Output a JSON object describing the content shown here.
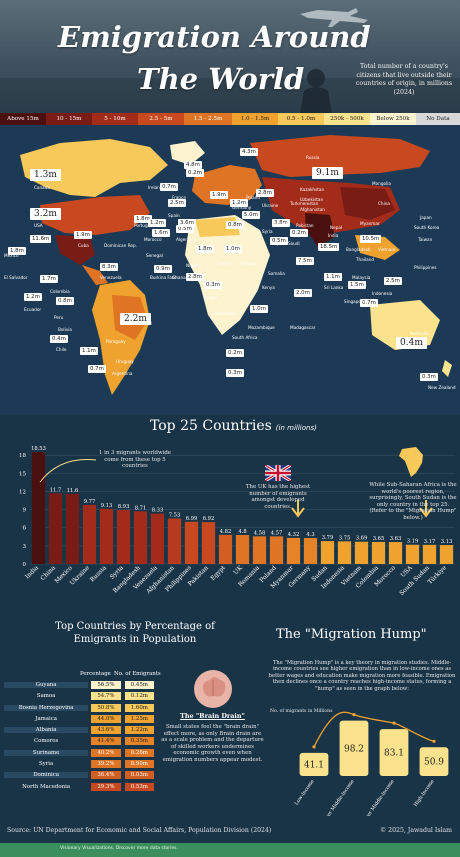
{
  "header": {
    "title_line1": "Emigration Around",
    "title_line2": "The World",
    "subtitle": "Total number of a country's citizens that live outside their countries of origin, in millions (2024)"
  },
  "legend": [
    {
      "label": "Above 15m",
      "color": "#4a0f0f",
      "text": "#fff"
    },
    {
      "label": "10 - 15m",
      "color": "#7a1c16",
      "text": "#fff"
    },
    {
      "label": "5 - 10m",
      "color": "#a32b1a",
      "text": "#fff"
    },
    {
      "label": "2.5 - 5m",
      "color": "#c8491f",
      "text": "#fff"
    },
    {
      "label": "1.5 - 2.5m",
      "color": "#de7424",
      "text": "#fff"
    },
    {
      "label": "1.0 - 1.5m",
      "color": "#f0a22e",
      "text": "#222"
    },
    {
      "label": "0.5 - 1.0m",
      "color": "#f7c85a",
      "text": "#222"
    },
    {
      "label": "250k - 500k",
      "color": "#fbe38e",
      "text": "#222"
    },
    {
      "label": "Below 250k",
      "color": "#fdf3cf",
      "text": "#222"
    },
    {
      "label": "No Data",
      "color": "#d8d8d8",
      "text": "#222"
    }
  ],
  "map_labels": [
    {
      "text": "1.3m",
      "big": true
    },
    {
      "text": "3.2m",
      "big": true
    },
    {
      "text": "9.1m",
      "big": true
    },
    {
      "text": "2.2m",
      "big": true
    },
    {
      "text": "0.4m",
      "big": true
    },
    {
      "text": "4.3m"
    },
    {
      "text": "4.8m"
    },
    {
      "text": "0.7m"
    },
    {
      "text": "2.8m"
    },
    {
      "text": "5.0m"
    },
    {
      "text": "0.2m"
    },
    {
      "text": "2.5m"
    },
    {
      "text": "1.8m"
    },
    {
      "text": "1.6m"
    },
    {
      "text": "0.5m"
    },
    {
      "text": "18.5m"
    },
    {
      "text": "10.5m"
    },
    {
      "text": "1.9m"
    },
    {
      "text": "1.2m"
    },
    {
      "text": "0.8m"
    },
    {
      "text": "11.6m"
    },
    {
      "text": "1.8m"
    },
    {
      "text": "1.9m"
    },
    {
      "text": "8.3m"
    },
    {
      "text": "1.7m"
    },
    {
      "text": "1.2m"
    },
    {
      "text": "0.8m"
    },
    {
      "text": "0.4m"
    },
    {
      "text": "1.1m"
    },
    {
      "text": "0.7m"
    },
    {
      "text": "1.2m"
    },
    {
      "text": "3.6m"
    },
    {
      "text": "0.9m"
    },
    {
      "text": "1.8m"
    },
    {
      "text": "2.8m"
    },
    {
      "text": "1.0m"
    },
    {
      "text": "3.8m"
    },
    {
      "text": "0.5m"
    },
    {
      "text": "0.2m"
    },
    {
      "text": "7.5m"
    },
    {
      "text": "2.0m"
    },
    {
      "text": "0.3m"
    },
    {
      "text": "1.0m"
    },
    {
      "text": "0.2m"
    },
    {
      "text": "0.3m"
    },
    {
      "text": "1.1m"
    },
    {
      "text": "1.5m"
    },
    {
      "text": "2.5m"
    },
    {
      "text": "0.7m"
    },
    {
      "text": "0.3m"
    }
  ],
  "map_places": [
    "Canada",
    "USA",
    "Mexico",
    "El Salvador",
    "Cuba",
    "Dominican Rep.",
    "Venezuela",
    "Colombia",
    "Ecuador",
    "Peru",
    "Bolivia",
    "Chile",
    "Brazil",
    "Paraguay",
    "Uruguay",
    "Argentina",
    "Portugal",
    "Spain",
    "France",
    "Ireland",
    "Poland",
    "Germany",
    "Russia",
    "Ukraine",
    "Morocco",
    "Algeria",
    "Senegal",
    "Burkina Faso",
    "Ghana",
    "Nigeria",
    "Angola",
    "Zimbabwe",
    "South Africa",
    "Mozambique",
    "Sudan",
    "Ethiopia",
    "Somalia",
    "Kenya",
    "Syria",
    "Iraq",
    "Saudi",
    "Afghanistan",
    "Pakistan",
    "India",
    "Bangladesh",
    "Nepal",
    "Sri Lanka",
    "Myanmar",
    "Thailand",
    "Vietnam",
    "Malaysia",
    "Indonesia",
    "Philippines",
    "China",
    "Mongolia",
    "Japan",
    "South Korea",
    "Taiwan",
    "Singapore",
    "Australia",
    "New Zealand",
    "Kazakhstan",
    "Uzbekistan",
    "Turkmenistan",
    "Madagascar",
    "Romania"
  ],
  "top25": {
    "title": "Top 25 Countries",
    "unit": "(in millions)",
    "note_top5": "1 in 3 migrants worldwide come from these top 5 countries",
    "note_uk": "The UK has the highest number of emigrants amongst developed countries.",
    "note_sudan": "While Sub-Saharan Africa is the world's poorest region, surprisingly, South Sudan is the only country in the top 25. (Refer to the \"Migration Hump\" below.)"
  },
  "chart_data": [
    {
      "type": "bar",
      "title": "Top 25 Countries",
      "ylabel": "",
      "ylim": [
        0,
        18.53
      ],
      "yticks": [
        0,
        3,
        6,
        9,
        12,
        15,
        18
      ],
      "categories": [
        "India",
        "China",
        "Mexico",
        "Ukraine",
        "Russia",
        "Syria",
        "Bangladesh",
        "Venezuela",
        "Afghanistan",
        "Philippines",
        "Pakistan",
        "Egypt",
        "UK",
        "Romania",
        "Poland",
        "Myanmar",
        "Germany",
        "Sudan",
        "Indonesia",
        "Vietnam",
        "Colombia",
        "Morocco",
        "USA",
        "South Sudan",
        "Türkiye"
      ],
      "values": [
        18.53,
        11.7,
        11.6,
        9.77,
        9.13,
        8.93,
        8.71,
        8.33,
        7.53,
        6.99,
        6.92,
        4.82,
        4.8,
        4.58,
        4.57,
        4.32,
        4.3,
        3.79,
        3.75,
        3.69,
        3.65,
        3.63,
        3.19,
        3.17,
        3.13
      ],
      "value_labels": [
        "18.53",
        "11.7",
        "11.6",
        "9.77",
        "9.13",
        "8.93",
        "8.71",
        "8.33",
        "7.53",
        "6.99",
        "6.92",
        "4.82",
        "4.8",
        "4.58",
        "4.57",
        "4.32",
        "4.3",
        "3.79",
        "3.75",
        "3.69",
        "3.65",
        "3.63",
        "3.19",
        "3.17",
        "3.13"
      ],
      "legend": "none",
      "grid": true
    },
    {
      "type": "table",
      "title": "Top Countries by Percentage of Emigrants in Population",
      "columns": [
        "",
        "Percentage",
        "No. of Emigrants"
      ],
      "rows": [
        [
          "Guyana",
          "56.5%",
          "0.45m"
        ],
        [
          "Samoa",
          "54.7%",
          "0.12m"
        ],
        [
          "Bosnia Herzegovina",
          "50.8%",
          "1.60m"
        ],
        [
          "Jamaica",
          "44.0%",
          "1.25m"
        ],
        [
          "Albania",
          "43.6%",
          "1.22m"
        ],
        [
          "Comoros",
          "41.4%",
          "0.35m"
        ],
        [
          "Suriname",
          "40.2%",
          "0.26m"
        ],
        [
          "Syria",
          "39.2%",
          "8.90m"
        ],
        [
          "Dominica",
          "36.4%",
          "0.03m"
        ],
        [
          "North Macedonia",
          "29.3%",
          "0.53m"
        ]
      ]
    },
    {
      "type": "bar",
      "title": "The \"Migration Hump\"",
      "ylabel": "No. of migrants in Millions",
      "categories": [
        "Low-Income",
        "Lower Middle-Income",
        "Upper Middle-Income",
        "High-Income"
      ],
      "values": [
        41.1,
        98.2,
        83.1,
        50.9
      ],
      "value_labels": [
        "41.1",
        "98.2",
        "83.1",
        "50.9"
      ],
      "ylim": [
        0,
        110
      ],
      "legend": "none",
      "grid": false
    }
  ],
  "percentage_section": {
    "title": "Top Countries by Percentage of Emigrants in Population",
    "col_pct": "Percentage",
    "col_num": "No. of Emigrants"
  },
  "brain_drain": {
    "title": "The \"Brain Drain\"",
    "text": "Small states feel the \"brain drain\" effect more, as only Brain drain are as a scale problem and the departure of skilled workers undermines economic growth even when emigration numbers appear modest."
  },
  "hump": {
    "title": "The \"Migration Hump\"",
    "text": "The \"Migration Hump\" is a key theory in migration studies. Middle-income countries see higher emigration than in low-income ones as better wages and education make migration more feasible. Emigration then declines once a country reaches high-income status, forming a \"hump\" as seen in the graph below:",
    "ylabel": "No. of migrants in Millions"
  },
  "footer": {
    "source": "Source: UN Department for Economic and Social Affairs, Population Division (2024)",
    "credit": "© 2025, Jawadul Islam",
    "bar_text": "Visionary Visualizations. Discover more data stories."
  },
  "colors": {
    "background": "#1a3447",
    "highlight_bar": "#f7c85a",
    "hump_bar": "#fbe38e"
  }
}
